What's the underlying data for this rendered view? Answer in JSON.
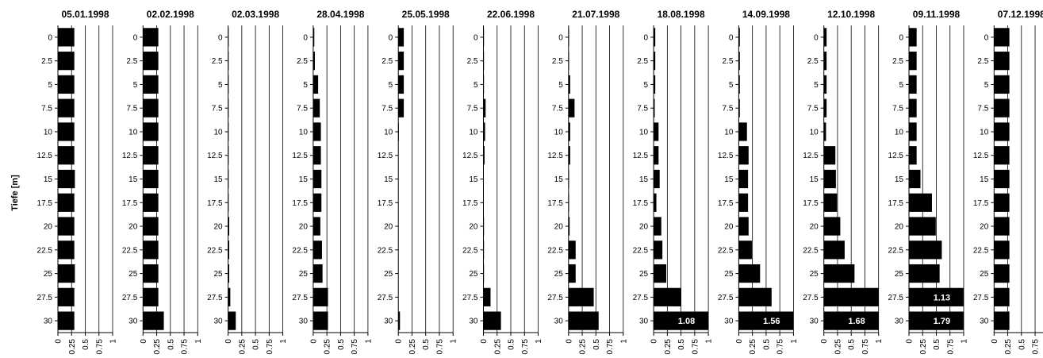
{
  "chart_data": {
    "type": "bar",
    "orientation": "horizontal",
    "ylabel": "Tiefe [m]",
    "depths": [
      "0",
      "2.5",
      "5",
      "7.5",
      "10",
      "12.5",
      "15",
      "17.5",
      "20",
      "22.5",
      "25",
      "27.5",
      "30"
    ],
    "x_ticks": [
      "0",
      "0.25",
      "0.5",
      "0.75",
      "1"
    ],
    "xlim": [
      0,
      1
    ],
    "grid": "vertical",
    "bar_color": "#000000",
    "panels": [
      {
        "title": "05.01.1998",
        "values": [
          0.3,
          0.3,
          0.3,
          0.3,
          0.3,
          0.3,
          0.31,
          0.3,
          0.3,
          0.3,
          0.31,
          0.3,
          0.3
        ],
        "labels": {}
      },
      {
        "title": "02.02.1998",
        "values": [
          0.28,
          0.28,
          0.28,
          0.28,
          0.28,
          0.28,
          0.28,
          0.28,
          0.28,
          0.28,
          0.28,
          0.28,
          0.38
        ],
        "labels": {}
      },
      {
        "title": "02.03.1998",
        "values": [
          0.01,
          0.01,
          0.01,
          0.01,
          0.01,
          0.01,
          0.01,
          0.01,
          0.02,
          0.02,
          0.02,
          0.04,
          0.14
        ],
        "labels": {}
      },
      {
        "title": "28.04.1998",
        "values": [
          0.02,
          0.03,
          0.09,
          0.12,
          0.14,
          0.14,
          0.15,
          0.15,
          0.13,
          0.16,
          0.17,
          0.27,
          0.27
        ],
        "labels": {}
      },
      {
        "title": "25.05.1998",
        "values": [
          0.1,
          0.1,
          0.1,
          0.1,
          0.01,
          0,
          0,
          0,
          0,
          0,
          0,
          0,
          0.03
        ],
        "labels": {}
      },
      {
        "title": "22.06.1998",
        "values": [
          0.01,
          0.01,
          0.01,
          0.04,
          0.03,
          0.02,
          0,
          0,
          0.01,
          0.01,
          0.01,
          0.13,
          0.32
        ],
        "labels": {}
      },
      {
        "title": "21.07.1998",
        "values": [
          0.01,
          0.01,
          0.03,
          0.11,
          0.03,
          0.03,
          0.01,
          0.01,
          0.02,
          0.13,
          0.13,
          0.46,
          0.55
        ],
        "labels": {}
      },
      {
        "title": "18.08.1998",
        "values": [
          0.03,
          0.03,
          0.03,
          0.02,
          0.09,
          0.09,
          0.11,
          0.05,
          0.14,
          0.16,
          0.23,
          0.5,
          1
        ],
        "labels": {
          "12": "1.08"
        }
      },
      {
        "title": "14.09.1998",
        "values": [
          0.02,
          0.02,
          0.02,
          0.02,
          0.15,
          0.18,
          0.17,
          0.17,
          0.18,
          0.24,
          0.39,
          0.6,
          1
        ],
        "labels": {
          "12": "1.56"
        }
      },
      {
        "title": "12.10.1998",
        "values": [
          0.05,
          0.05,
          0.05,
          0.05,
          0.04,
          0.21,
          0.22,
          0.24,
          0.3,
          0.38,
          0.56,
          1,
          1
        ],
        "labels": {
          "12": "1.68"
        }
      },
      {
        "title": "09.11.1998",
        "values": [
          0.14,
          0.14,
          0.14,
          0.14,
          0.14,
          0.14,
          0.21,
          0.42,
          0.49,
          0.6,
          0.56,
          1,
          1
        ],
        "labels": {
          "11": "1.13",
          "12": "1.79"
        }
      },
      {
        "title": "07.12.1998",
        "values": [
          0.28,
          0.28,
          0.28,
          0.28,
          0.28,
          0.28,
          0.28,
          0.28,
          0.28,
          0.28,
          0.28,
          0.28,
          0.28
        ],
        "labels": {}
      }
    ]
  }
}
